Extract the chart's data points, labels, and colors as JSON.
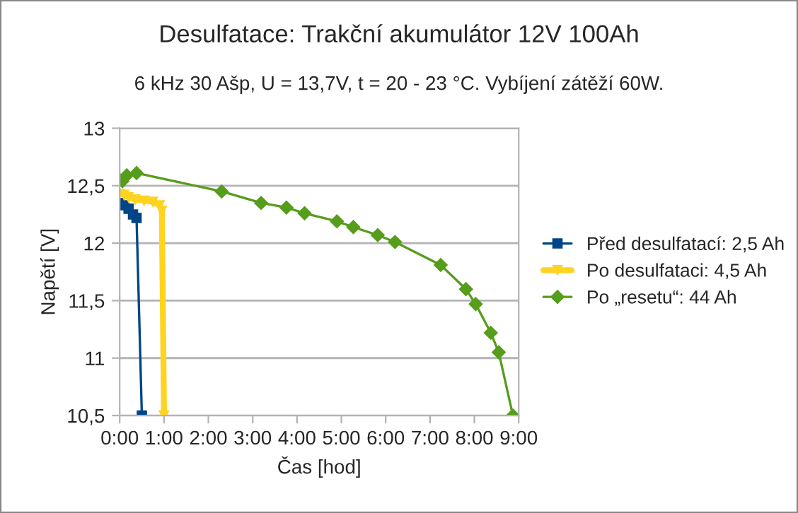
{
  "chart_data": {
    "type": "line",
    "title": "Desulfatace: Trakční akumulátor 12V 100Ah",
    "subtitle": "6 kHz 30 Ašp, U = 13,7V, t = 20 - 23 °C. Vybíjení zátěží 60W.",
    "xlabel": "Čas [hod]",
    "ylabel": "Napětí [V]",
    "series": [
      {
        "name": "Před desulfatací: 2,5 Ah",
        "color": "#004586",
        "marker": "square",
        "x": [
          0,
          0.1,
          0.2,
          0.3,
          0.38,
          0.5
        ],
        "values": [
          12.35,
          12.33,
          12.3,
          12.25,
          12.22,
          10.5
        ]
      },
      {
        "name": "Po desulfataci: 4,5 Ah",
        "color": "#ffd320",
        "marker": "triangle",
        "x": [
          0,
          0.1,
          0.2,
          0.35,
          0.55,
          0.75,
          0.9,
          0.95,
          1.0
        ],
        "values": [
          12.43,
          12.42,
          12.4,
          12.38,
          12.37,
          12.36,
          12.33,
          12.28,
          10.5
        ]
      },
      {
        "name": "Po „resetu“: 44 Ah",
        "color": "#579d1c",
        "marker": "diamond",
        "x": [
          0,
          0.06,
          0.16,
          0.38,
          2.3,
          3.19,
          3.76,
          4.17,
          4.9,
          5.27,
          5.82,
          6.21,
          7.24,
          7.81,
          8.03,
          8.37,
          8.55,
          8.87
        ],
        "values": [
          12.55,
          12.54,
          12.59,
          12.61,
          12.45,
          12.35,
          12.31,
          12.26,
          12.19,
          12.14,
          12.07,
          12.01,
          11.81,
          11.6,
          11.47,
          11.22,
          11.05,
          10.5
        ]
      }
    ],
    "xlim": [
      0,
      9
    ],
    "xticks": [
      {
        "value": 0,
        "label": "0:00"
      },
      {
        "value": 1,
        "label": "1:00"
      },
      {
        "value": 2,
        "label": "2:00"
      },
      {
        "value": 3,
        "label": "3:00"
      },
      {
        "value": 4,
        "label": "4:00"
      },
      {
        "value": 5,
        "label": "5:00"
      },
      {
        "value": 6,
        "label": "6:00"
      },
      {
        "value": 7,
        "label": "7:00"
      },
      {
        "value": 8,
        "label": "8:00"
      },
      {
        "value": 9,
        "label": "9:00"
      }
    ],
    "ylim": [
      10.5,
      13
    ],
    "yticks": [
      {
        "value": 10.5,
        "label": "10,5"
      },
      {
        "value": 11,
        "label": "11"
      },
      {
        "value": 11.5,
        "label": "11,5"
      },
      {
        "value": 12,
        "label": "12"
      },
      {
        "value": 12.5,
        "label": "12,5"
      },
      {
        "value": 13,
        "label": "13"
      }
    ],
    "grid": "y",
    "legend": "right"
  }
}
